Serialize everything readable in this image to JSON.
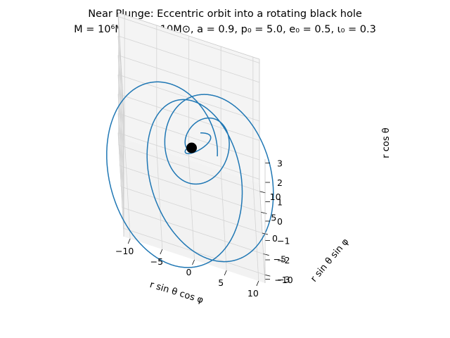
{
  "chart_data": {
    "type": "line",
    "projection": "3d",
    "title": "Near Plunge: Eccentric orbit into a rotating black hole",
    "subtitle": "M = 10⁶M⊙, μ = 10M⊙, a = 0.9, p₀ = 5.0, e₀ = 0.5, ι₀ = 0.3",
    "xlabel": "r sin θ cos φ",
    "ylabel": "r sin θ sin φ",
    "zlabel": "r cos θ",
    "xlim": [
      -11,
      11
    ],
    "ylim": [
      -12,
      12
    ],
    "zlim": [
      -3.2,
      3.2
    ],
    "xticks": [
      "−10",
      "−5",
      "0",
      "5",
      "10"
    ],
    "yticks": [
      "−10",
      "−5",
      "0",
      "5",
      "10"
    ],
    "zticks": [
      "−3",
      "−2",
      "−1",
      "0",
      "1",
      "2",
      "3"
    ],
    "xtick_values": [
      -10,
      -5,
      0,
      5,
      10
    ],
    "ytick_values": [
      -10,
      -5,
      0,
      5,
      10
    ],
    "ztick_values": [
      -3,
      -2,
      -1,
      0,
      1,
      2,
      3
    ],
    "grid": true,
    "line_color": "#1f77b4",
    "black_hole_color": "#000000",
    "black_hole_position": [
      0,
      0,
      0
    ],
    "orbit_params": {
      "p0": 5.0,
      "e0": 0.5,
      "iota0": 0.3,
      "a": 0.9
    }
  }
}
